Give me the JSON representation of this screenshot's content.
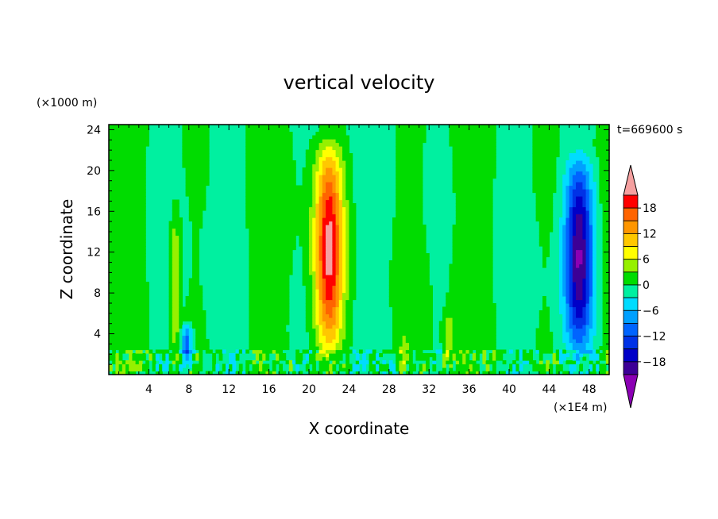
{
  "chart_data": {
    "type": "heatmap",
    "title": "vertical velocity",
    "xlabel": "X coordinate",
    "ylabel": "Z coordinate",
    "x_unit": "(×1E4 m)",
    "y_unit": "(×1000 m)",
    "time_label": "t=669600 s",
    "xlim": [
      0,
      50
    ],
    "ylim": [
      0,
      24.5
    ],
    "x_ticks": [
      "4",
      "8",
      "12",
      "16",
      "20",
      "24",
      "28",
      "32",
      "36",
      "40",
      "44",
      "48"
    ],
    "y_ticks": [
      "4",
      "8",
      "12",
      "16",
      "20",
      "24"
    ],
    "colorbar": {
      "ticks": [
        "18",
        "12",
        "6",
        "0",
        "−6",
        "−12",
        "−18"
      ],
      "levels": [
        -21,
        -18,
        -15,
        -12,
        -9,
        -6,
        -3,
        0,
        3,
        6,
        9,
        12,
        15,
        18,
        21
      ],
      "colors": [
        "#8b00b4",
        "#3c0096",
        "#0000c8",
        "#0032e6",
        "#0064ff",
        "#00a0ff",
        "#00dcff",
        "#00f0a0",
        "#00dc00",
        "#96f000",
        "#ffff00",
        "#ffc800",
        "#ff9600",
        "#ff6400",
        "#ff0000",
        "#f5a0a0"
      ]
    },
    "features": [
      {
        "kind": "updraft",
        "x_center": 22,
        "z_bottom": 0,
        "z_top": 24.5,
        "peak": 21
      },
      {
        "kind": "downdraft",
        "x_center": 47,
        "z_bottom": 0.5,
        "z_top": 23,
        "peak": -20
      },
      {
        "kind": "weak-updraft",
        "x_center": 6.6,
        "z_bottom": 0,
        "z_top": 18.5,
        "peak": 7
      },
      {
        "kind": "weak-downdraft",
        "x_center": 7.8,
        "z_bottom": 0,
        "z_top": 5.5,
        "peak": -12
      },
      {
        "kind": "weak-updraft",
        "x_center": 34,
        "z_bottom": 0,
        "z_top": 7,
        "peak": 5
      },
      {
        "kind": "weak-updraft",
        "x_center": 29.5,
        "z_bottom": 0,
        "z_top": 4.5,
        "peak": 4
      }
    ]
  }
}
